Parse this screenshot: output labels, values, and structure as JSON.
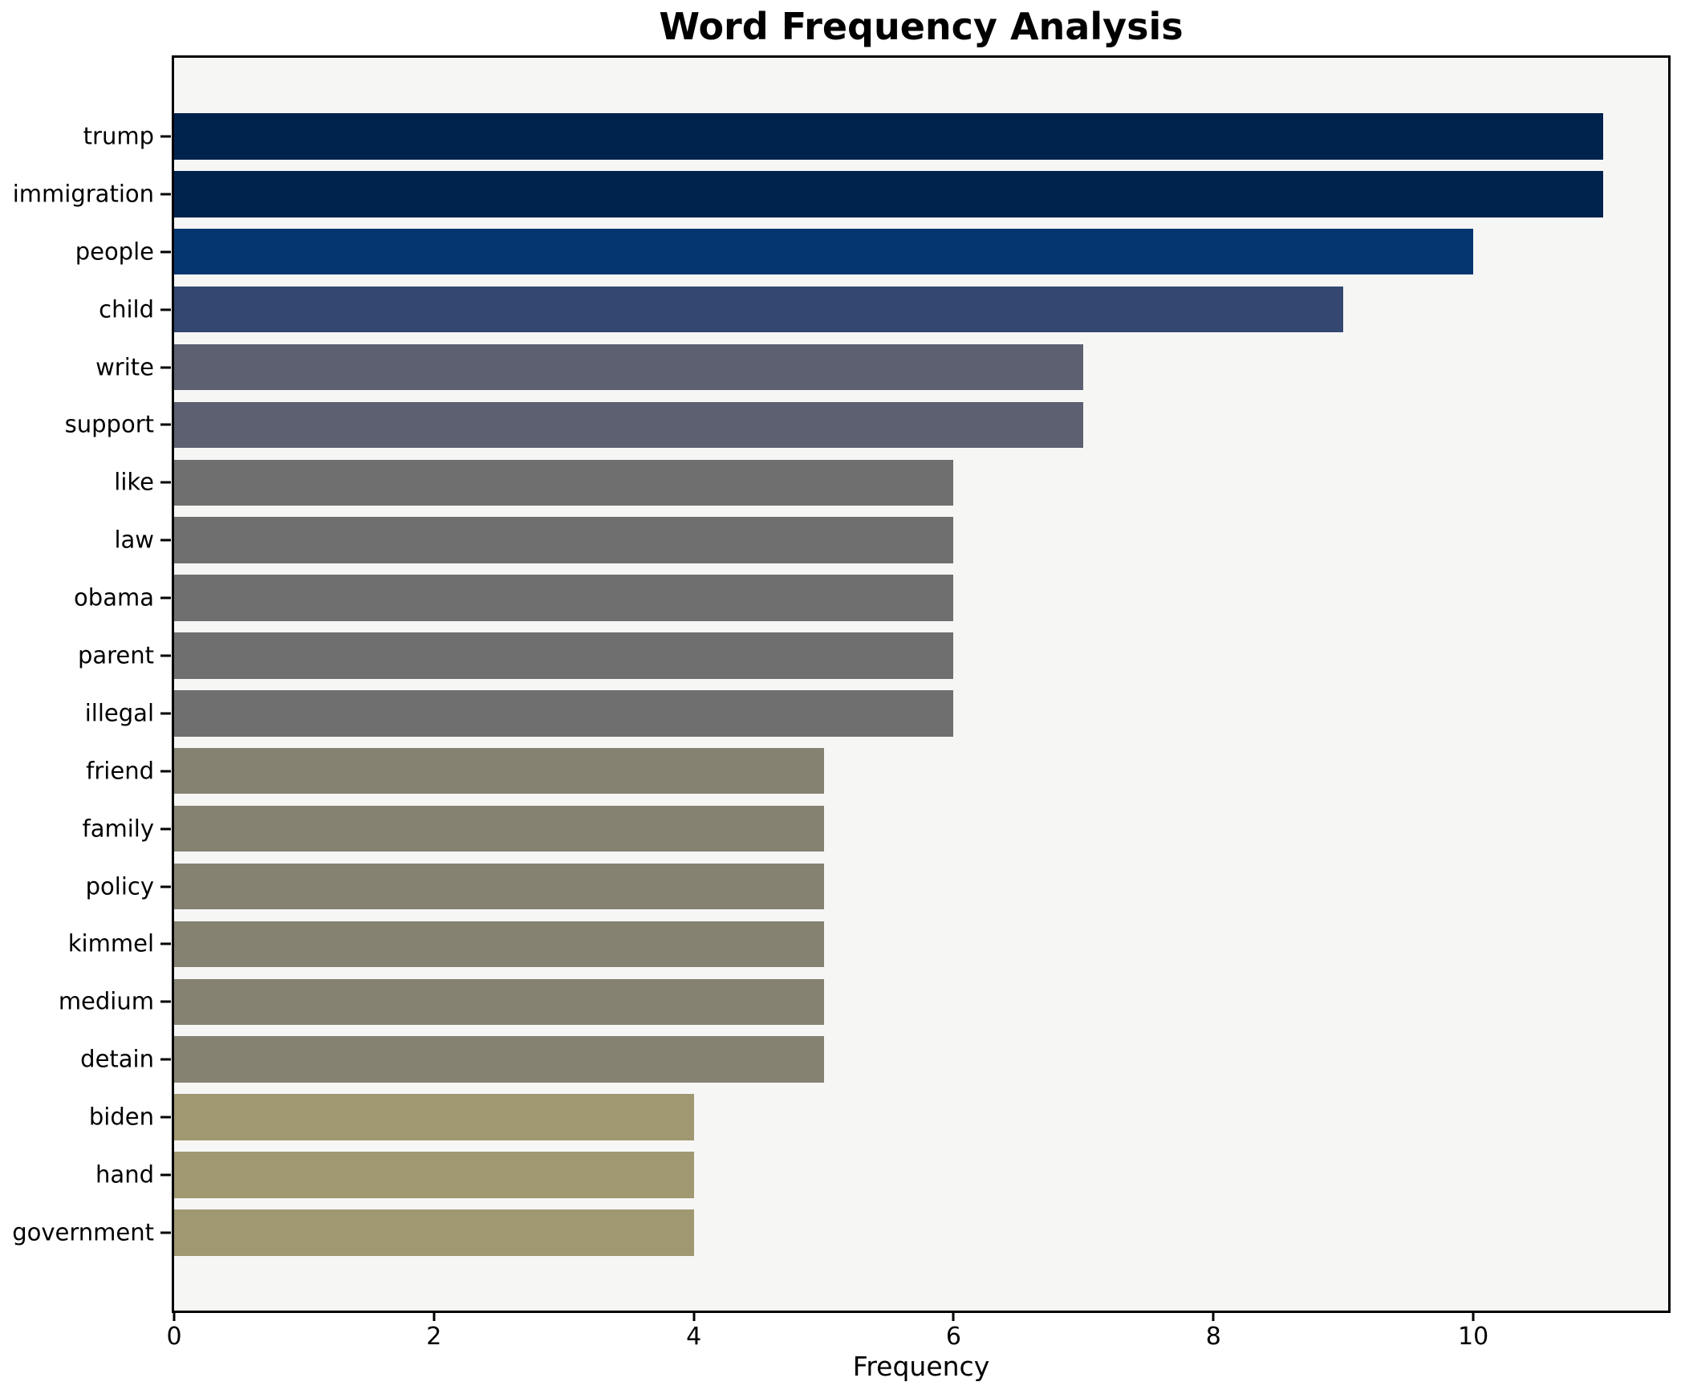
{
  "title": "Word Frequency Analysis",
  "chart_data": {
    "type": "bar",
    "orientation": "horizontal",
    "title": "Word Frequency Analysis",
    "xlabel": "Frequency",
    "ylabel": "",
    "categories": [
      "trump",
      "immigration",
      "people",
      "child",
      "write",
      "support",
      "like",
      "law",
      "obama",
      "parent",
      "illegal",
      "friend",
      "family",
      "policy",
      "kimmel",
      "medium",
      "detain",
      "biden",
      "hand",
      "government"
    ],
    "values": [
      11,
      11,
      10,
      9,
      7,
      7,
      6,
      6,
      6,
      6,
      6,
      5,
      5,
      5,
      5,
      5,
      5,
      4,
      4,
      4
    ],
    "bar_colors": [
      "#00234e",
      "#00234e",
      "#05366f",
      "#334770",
      "#5c6070",
      "#5c6070",
      "#6f6f6f",
      "#6f6f6f",
      "#6f6f6f",
      "#6f6f6f",
      "#6f6f6f",
      "#868272",
      "#868272",
      "#868272",
      "#868272",
      "#868272",
      "#868272",
      "#a09870",
      "#a09870",
      "#a09870"
    ],
    "xticks": [
      0,
      2,
      4,
      6,
      8,
      10
    ],
    "xlim": [
      0,
      11.5
    ],
    "grid": false,
    "legend": false,
    "plot_background": "#f6f6f5",
    "figure_background": "#ffffff",
    "axis_color": "#000000"
  }
}
